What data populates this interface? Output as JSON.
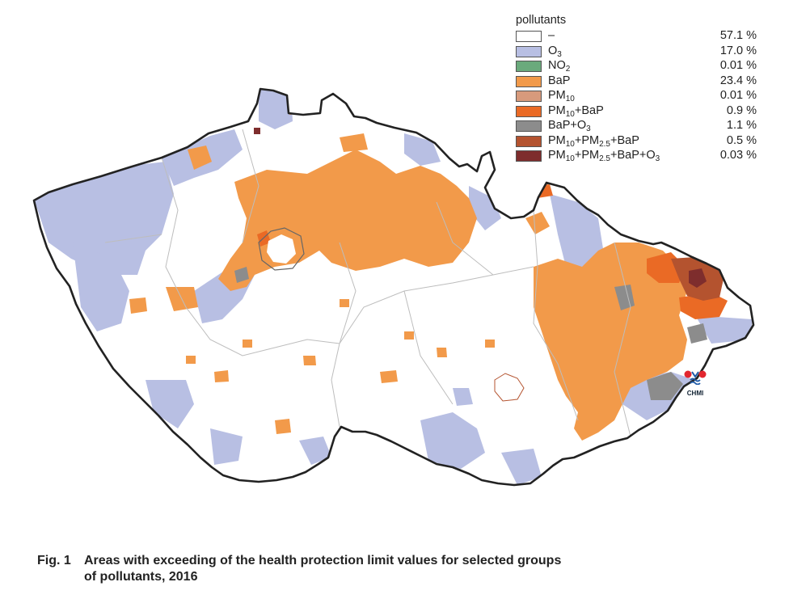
{
  "legend": {
    "title": "pollutants",
    "items": [
      {
        "label_html": "–",
        "percent": "57.1 %",
        "color": "#ffffff"
      },
      {
        "label_html": "O<sub>3</sub>",
        "percent": "17.0 %",
        "color": "#b8bfe3"
      },
      {
        "label_html": "NO<sub>2</sub>",
        "percent": "0.01 %",
        "color": "#6aaa7c"
      },
      {
        "label_html": "BaP",
        "percent": "23.4 %",
        "color": "#f29a4a"
      },
      {
        "label_html": "PM<sub>10</sub>",
        "percent": "0.01 %",
        "color": "#d79a7c"
      },
      {
        "label_html": "PM<sub>10</sub>+BaP",
        "percent": "0.9 %",
        "color": "#ea6a25"
      },
      {
        "label_html": "BaP+O<sub>3</sub>",
        "percent": "1.1 %",
        "color": "#8c8c8c"
      },
      {
        "label_html": "PM<sub>10</sub>+PM<sub>2.5</sub>+BaP",
        "percent": "0.5 %",
        "color": "#b4532f"
      },
      {
        "label_html": "PM<sub>10</sub>+PM<sub>2.5</sub>+BaP+O<sub>3</sub>",
        "percent": "0.03 %",
        "color": "#7e2d2d"
      }
    ]
  },
  "caption": {
    "number": "Fig. 1",
    "line1": "Areas with exceeding of the health protection limit values for selected groups",
    "line2": "of pollutants, 2016"
  },
  "logo": {
    "text": "CHMI"
  },
  "colors": {
    "border": "#222222",
    "region_lines": "#bdbdbd"
  }
}
